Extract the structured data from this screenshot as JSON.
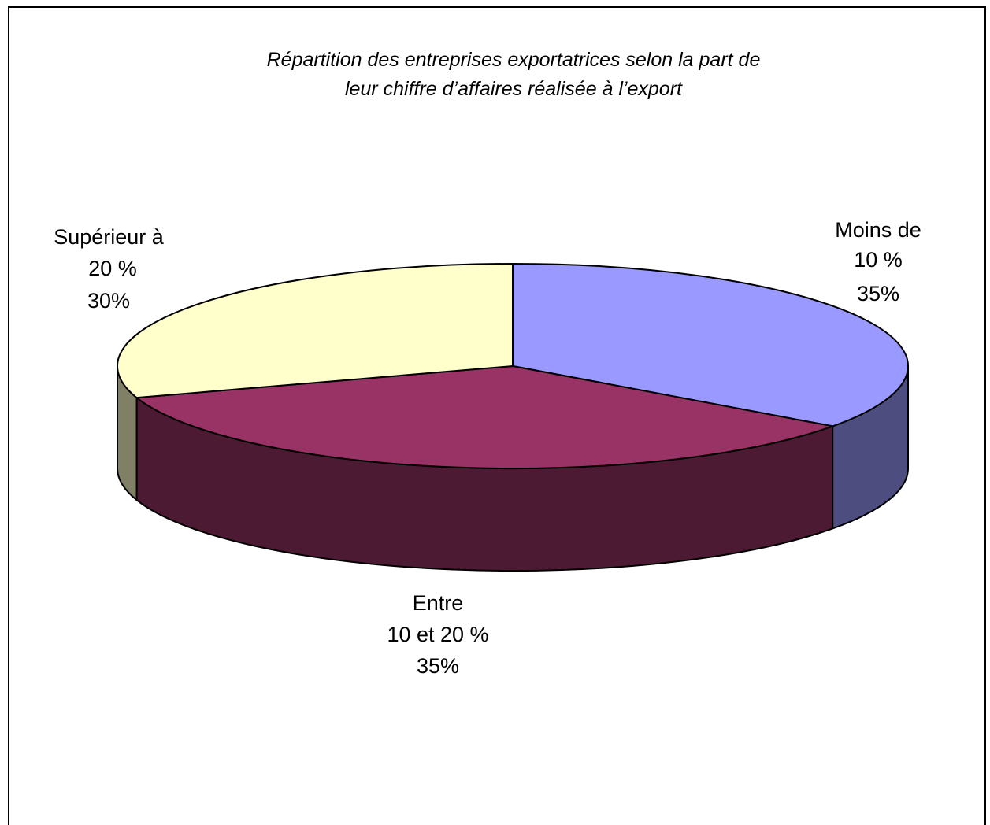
{
  "chart_data": {
    "type": "pie",
    "style": "3d",
    "title_lines": [
      "Répartition des entreprises exportatrices selon la part de",
      "leur chiffre d’affaires réalisée à l’export"
    ],
    "slices": [
      {
        "label_lines": [
          "Moins de",
          "10 %"
        ],
        "value": 35,
        "value_label": "35%",
        "color": "#9999FF",
        "side_color": "#4D4D80"
      },
      {
        "label_lines": [
          "Entre",
          "10 et 20 %"
        ],
        "value": 35,
        "value_label": "35%",
        "color": "#993366",
        "side_color": "#4D1A33"
      },
      {
        "label_lines": [
          "Supérieur à",
          "20 %"
        ],
        "value": 30,
        "value_label": "30%",
        "color": "#FFFFCC",
        "side_color": "#808066"
      }
    ],
    "start_angle_deg": 0,
    "direction": "clockwise",
    "legend": "none"
  }
}
